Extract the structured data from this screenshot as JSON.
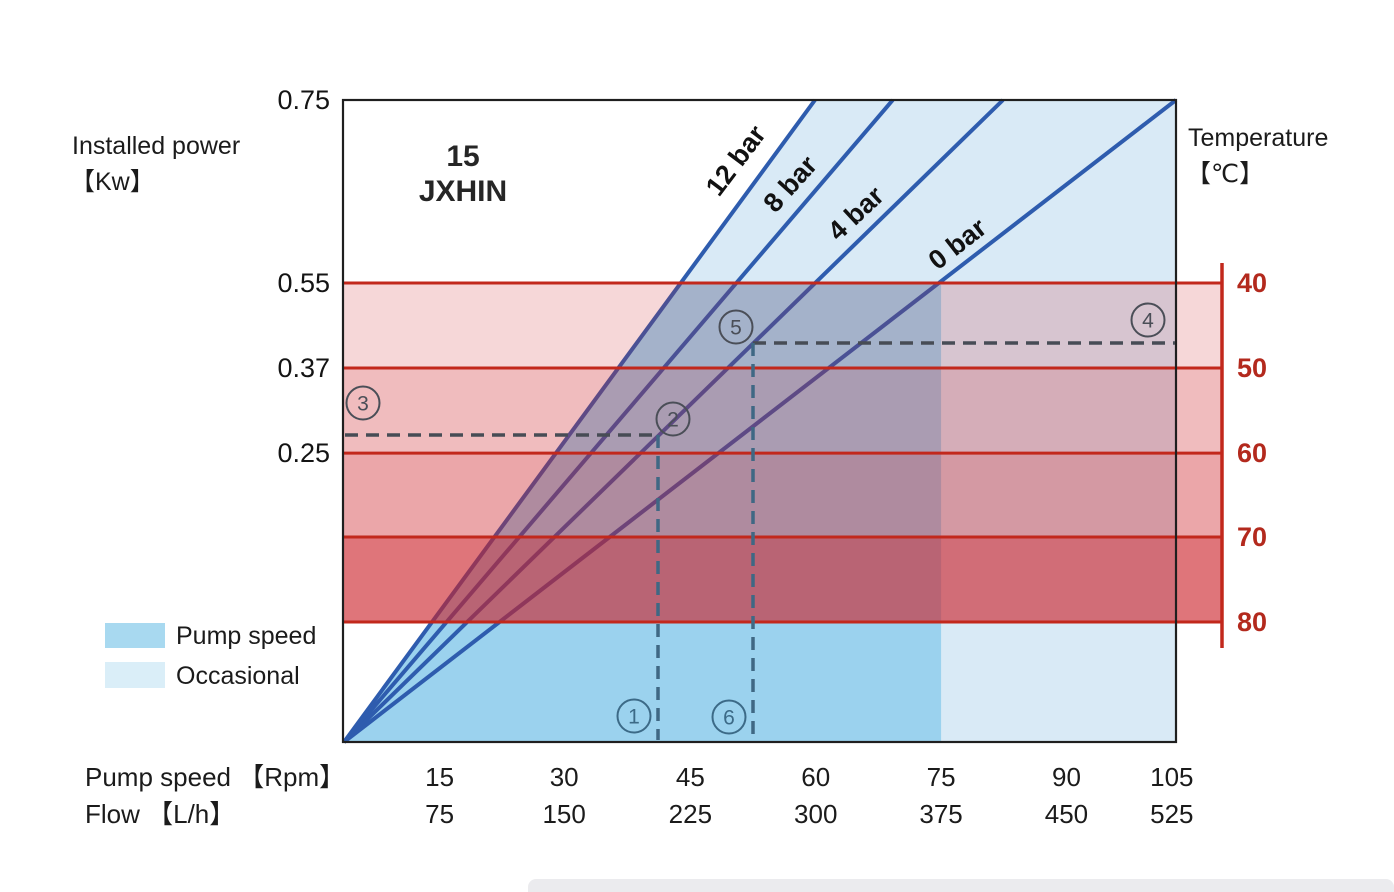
{
  "chart_data": {
    "type": "line",
    "title_line1": "15",
    "title_line2": "JXHIN",
    "left_axis": {
      "title_line1": "Installed power",
      "title_line2": "【Kw】",
      "ticks": [
        "0.75",
        "0.55",
        "0.37",
        "0.25"
      ]
    },
    "right_axis": {
      "title_line1": "Temperature",
      "title_line2": "【℃】",
      "ticks": [
        "40",
        "50",
        "60",
        "70",
        "80"
      ]
    },
    "x_axis": {
      "row1_title": "Pump speed 【Rpm】",
      "row1_ticks": [
        "15",
        "30",
        "45",
        "60",
        "75",
        "90",
        "105"
      ],
      "row2_title": "Flow 【L/h】",
      "row2_ticks": [
        "75",
        "150",
        "225",
        "300",
        "375",
        "450",
        "525"
      ]
    },
    "series": [
      {
        "name": "12 bar",
        "from": {
          "rpm": 0,
          "kw": 0
        },
        "to": {
          "rpm": 60,
          "kw": 0.75
        }
      },
      {
        "name": "8 bar",
        "from": {
          "rpm": 0,
          "kw": 0
        },
        "to": {
          "rpm": 69,
          "kw": 0.75
        }
      },
      {
        "name": "4 bar",
        "from": {
          "rpm": 0,
          "kw": 0
        },
        "to": {
          "rpm": 83,
          "kw": 0.75
        }
      },
      {
        "name": "0 bar",
        "from": {
          "rpm": 0,
          "kw": 0
        },
        "to": {
          "rpm": 105,
          "kw": 0.75
        }
      }
    ],
    "regions": {
      "pump_speed": {
        "label": "Pump speed",
        "rpm_max": 75,
        "temp_top": 40
      },
      "occasional": {
        "label": "Occasional",
        "rpm_max": 105
      },
      "temperature_bands": [
        {
          "from": 40,
          "to": 50
        },
        {
          "from": 50,
          "to": 60
        },
        {
          "from": 60,
          "to": 70
        },
        {
          "from": 70,
          "to": 80
        }
      ]
    },
    "annotations": [
      {
        "symbol": "1",
        "rpm": 41,
        "flow": 206
      },
      {
        "symbol": "2",
        "kw": 0.28,
        "curve": "4 bar"
      },
      {
        "symbol": "3",
        "kw": 0.28,
        "temp": 58
      },
      {
        "symbol": "4",
        "temp": 47
      },
      {
        "symbol": "5",
        "kw": 0.42,
        "curve": "4 bar"
      },
      {
        "symbol": "6",
        "rpm": 53,
        "flow": 263
      }
    ],
    "legend": [
      {
        "label": "Pump speed",
        "color": "#a8d9f0"
      },
      {
        "label": "Occasional",
        "color": "#daeef8"
      }
    ],
    "colors": {
      "curve_blue": "#2e5cae",
      "temperature_red": "#c2281c",
      "temperature_label_red": "#b3291d",
      "pump_region_blue": "#9bd2ee",
      "occasional_region_blue": "#d9eaf6",
      "band_base_red": "#cc2028",
      "annotation_gray": "#4a4e57",
      "annotation_blue": "#3c6a87",
      "dash_gray": "#474c55",
      "dash_blue": "#3f6884",
      "frame_black": "#1f1f1f"
    }
  }
}
